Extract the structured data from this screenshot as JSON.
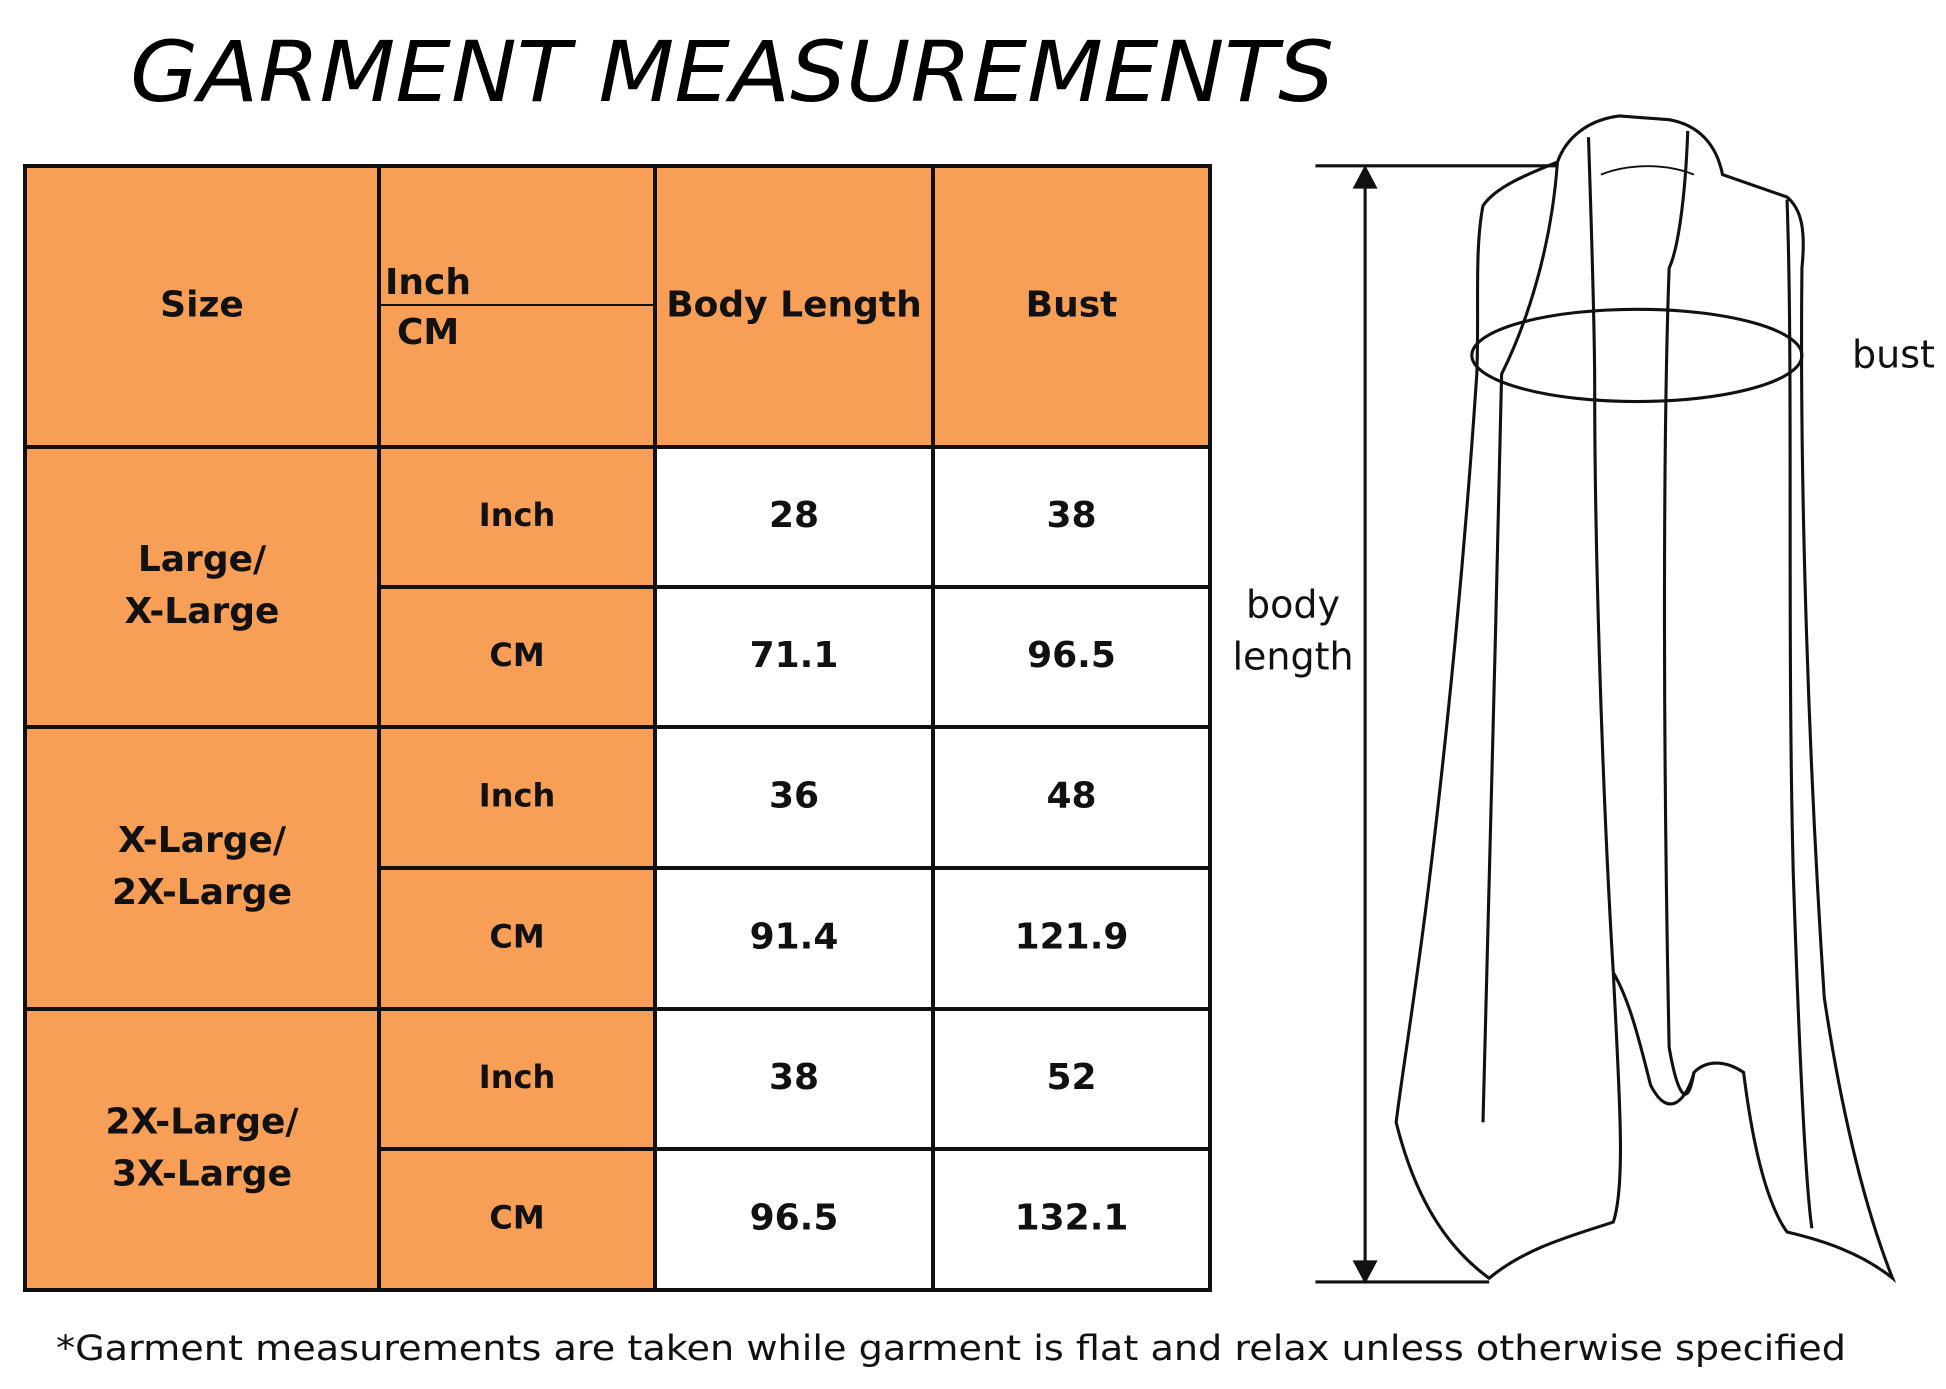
{
  "title": "GARMENT MEASUREMENTS",
  "table": {
    "header": [
      "Size",
      "Body Length",
      "Bust"
    ],
    "unit_header": [
      "Inch",
      "CM"
    ],
    "groups": [
      {
        "size": [
          "Large/",
          "X-Large"
        ],
        "rows": [
          {
            "unit": "Inch",
            "values": [
              28,
              38
            ]
          },
          {
            "unit": "CM",
            "values": [
              71.1,
              96.5
            ]
          }
        ]
      },
      {
        "size": [
          "X-Large/",
          "2X-Large"
        ],
        "rows": [
          {
            "unit": "Inch",
            "values": [
              36,
              48
            ]
          },
          {
            "unit": "CM",
            "values": [
              91.4,
              121.9
            ]
          }
        ]
      },
      {
        "size": [
          "2X-Large/",
          "3X-Large"
        ],
        "rows": [
          {
            "unit": "Inch",
            "values": [
              38,
              52
            ]
          },
          {
            "unit": "CM",
            "values": [
              96.5,
              132.1
            ]
          }
        ]
      }
    ]
  },
  "diagram": {
    "bust_label": "bust",
    "body_length_label": [
      "body",
      "length"
    ]
  },
  "footnote": "*Garment measurements are taken while garment is flat and relax unless otherwise specified"
}
